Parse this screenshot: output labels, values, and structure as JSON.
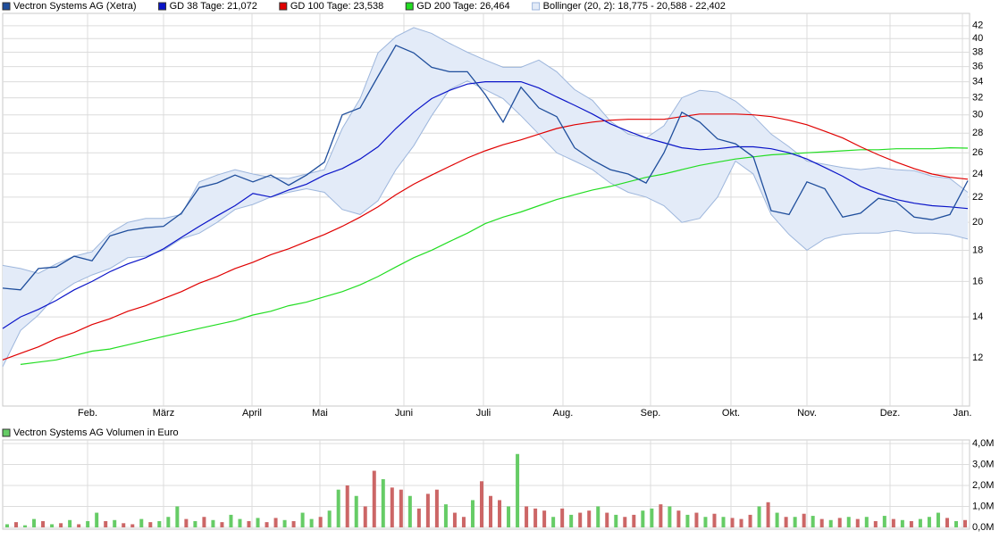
{
  "chart_data": [
    {
      "type": "line",
      "log_scale": true,
      "grid": true,
      "ylim": [
        10,
        44
      ],
      "yticks": [
        12,
        14,
        16,
        18,
        20,
        22,
        24,
        26,
        28,
        30,
        32,
        34,
        36,
        38,
        40,
        42
      ],
      "xlim": [
        0,
        54.1
      ],
      "xticks": [
        {
          "value": 4.75,
          "label": "Feb."
        },
        {
          "value": 9.0,
          "label": "März"
        },
        {
          "value": 13.95,
          "label": "April"
        },
        {
          "value": 17.75,
          "label": "Mai"
        },
        {
          "value": 22.45,
          "label": "Juni"
        },
        {
          "value": 26.9,
          "label": "Juli"
        },
        {
          "value": 31.35,
          "label": "Aug."
        },
        {
          "value": 36.25,
          "label": "Sep."
        },
        {
          "value": 40.75,
          "label": "Okt."
        },
        {
          "value": 45.0,
          "label": "Nov."
        },
        {
          "value": 49.65,
          "label": "Dez."
        },
        {
          "value": 53.7,
          "label": "Jan."
        }
      ],
      "series": [
        {
          "name": "Vectron Systems AG (Xetra)",
          "color": "#1f4e9c",
          "values": [
            15.6,
            15.5,
            16.8,
            16.9,
            17.6,
            17.3,
            19.0,
            19.4,
            19.6,
            19.7,
            20.7,
            22.8,
            23.2,
            23.9,
            23.3,
            23.9,
            23.0,
            23.9,
            25.1,
            30.0,
            30.8,
            34.7,
            39.0,
            37.9,
            35.9,
            35.3,
            35.3,
            32.4,
            29.2,
            33.3,
            30.8,
            29.8,
            26.5,
            25.3,
            24.4,
            24.0,
            23.2,
            26.0,
            30.3,
            29.2,
            27.4,
            26.9,
            25.6,
            20.9,
            20.6,
            23.3,
            22.7,
            20.4,
            20.7,
            21.9,
            21.6,
            20.4,
            20.2,
            20.6,
            23.4
          ]
        },
        {
          "name": "GD 38 Tage: 21,072",
          "color": "#0a14c8",
          "values": [
            13.4,
            14.0,
            14.4,
            14.9,
            15.5,
            16.0,
            16.6,
            17.1,
            17.5,
            18.1,
            18.9,
            19.7,
            20.5,
            21.3,
            22.3,
            22.0,
            22.6,
            23.1,
            23.9,
            24.5,
            25.4,
            26.6,
            28.5,
            30.3,
            31.9,
            32.9,
            33.7,
            34.0,
            34.0,
            34.0,
            33.2,
            32.1,
            31.1,
            30.1,
            29.0,
            28.2,
            27.5,
            27.0,
            26.5,
            26.3,
            26.4,
            26.6,
            26.6,
            26.4,
            26.0,
            25.4,
            24.6,
            23.8,
            22.9,
            22.3,
            21.8,
            21.5,
            21.3,
            21.2,
            21.07
          ]
        },
        {
          "name": "GD 100 Tage: 23,538",
          "color": "#e00000",
          "values": [
            11.9,
            12.2,
            12.5,
            12.9,
            13.2,
            13.6,
            13.9,
            14.3,
            14.6,
            15.0,
            15.4,
            15.9,
            16.3,
            16.8,
            17.2,
            17.7,
            18.1,
            18.6,
            19.1,
            19.7,
            20.4,
            21.2,
            22.2,
            23.1,
            23.9,
            24.7,
            25.5,
            26.2,
            26.8,
            27.3,
            27.9,
            28.5,
            28.9,
            29.2,
            29.4,
            29.5,
            29.5,
            29.5,
            29.8,
            30.1,
            30.1,
            30.1,
            30.0,
            29.8,
            29.4,
            28.9,
            28.2,
            27.5,
            26.6,
            25.8,
            25.1,
            24.5,
            24.0,
            23.7,
            23.54
          ]
        },
        {
          "name": "GD 200 Tage: 26,464",
          "color": "#22dd22",
          "values": [
            null,
            11.7,
            11.8,
            11.9,
            12.1,
            12.3,
            12.4,
            12.6,
            12.8,
            13.0,
            13.2,
            13.4,
            13.6,
            13.8,
            14.1,
            14.3,
            14.6,
            14.8,
            15.1,
            15.4,
            15.8,
            16.3,
            16.9,
            17.5,
            18.0,
            18.6,
            19.2,
            19.9,
            20.4,
            20.8,
            21.3,
            21.8,
            22.2,
            22.6,
            22.9,
            23.3,
            23.7,
            24.0,
            24.4,
            24.8,
            25.1,
            25.4,
            25.6,
            25.8,
            25.9,
            26.0,
            26.1,
            26.2,
            26.3,
            26.3,
            26.4,
            26.4,
            26.4,
            26.5,
            26.46
          ]
        }
      ],
      "bands": {
        "name": "Bollinger (20, 2): 18,775 - 20,588 - 22,402",
        "color": "#9db6dc",
        "fill": "#e3ebf8",
        "upper": [
          17.0,
          16.8,
          16.5,
          17.1,
          17.6,
          17.9,
          19.2,
          20.0,
          20.3,
          20.3,
          20.6,
          23.3,
          23.9,
          24.4,
          24.0,
          23.7,
          23.6,
          24.0,
          24.4,
          28.5,
          31.9,
          37.9,
          40.3,
          41.7,
          40.8,
          39.3,
          38.0,
          36.9,
          35.9,
          35.9,
          36.9,
          35.3,
          33.0,
          31.7,
          29.3,
          27.9,
          27.5,
          28.8,
          32.0,
          32.9,
          32.7,
          31.6,
          29.9,
          27.9,
          26.6,
          25.2,
          24.9,
          24.6,
          24.4,
          24.6,
          24.4,
          24.3,
          23.8,
          23.6,
          22.4
        ],
        "lower": [
          11.6,
          13.3,
          14.1,
          15.2,
          15.9,
          16.4,
          16.8,
          17.5,
          17.6,
          18.0,
          18.8,
          19.2,
          20.0,
          21.0,
          21.4,
          22.0,
          22.4,
          22.7,
          22.4,
          21.0,
          20.6,
          21.7,
          24.4,
          26.7,
          29.9,
          33.0,
          34.1,
          33.0,
          31.9,
          29.9,
          27.9,
          26.0,
          25.2,
          24.4,
          23.2,
          22.4,
          22.0,
          21.3,
          20.0,
          20.3,
          22.0,
          25.2,
          24.0,
          20.6,
          19.1,
          18.0,
          18.8,
          19.1,
          19.2,
          19.2,
          19.4,
          19.2,
          19.2,
          19.1,
          18.775
        ]
      }
    },
    {
      "type": "bar",
      "title": "Vectron Systems AG Volumen in Euro",
      "color": "#66cc66",
      "grid": true,
      "ylim": [
        0,
        4170000
      ],
      "yticks": [
        {
          "value": 0,
          "label": "0,0M"
        },
        {
          "value": 1000000,
          "label": "1,0M"
        },
        {
          "value": 2000000,
          "label": "2,0M"
        },
        {
          "value": 3000000,
          "label": "3,0M"
        },
        {
          "value": 4000000,
          "label": "4,0M"
        }
      ],
      "values": [
        150000,
        250000,
        100000,
        400000,
        300000,
        150000,
        200000,
        350000,
        150000,
        300000,
        700000,
        300000,
        350000,
        200000,
        150000,
        400000,
        250000,
        300000,
        500000,
        1000000,
        400000,
        300000,
        500000,
        350000,
        250000,
        600000,
        400000,
        300000,
        450000,
        250000,
        450000,
        350000,
        300000,
        700000,
        400000,
        500000,
        800000,
        1800000,
        2000000,
        1500000,
        1000000,
        2700000,
        2300000,
        1900000,
        1800000,
        1500000,
        900000,
        1600000,
        1800000,
        1100000,
        700000,
        500000,
        1300000,
        2200000,
        1500000,
        1300000,
        1000000,
        3500000,
        1000000,
        900000,
        800000,
        500000,
        900000,
        600000,
        700000,
        800000,
        1000000,
        700000,
        600000,
        500000,
        600000,
        800000,
        900000,
        1100000,
        1000000,
        800000,
        600000,
        700000,
        500000,
        650000,
        500000,
        450000,
        400000,
        600000,
        1000000,
        1200000,
        700000,
        500000,
        500000,
        650000,
        550000,
        400000,
        350000,
        450000,
        500000,
        400000,
        500000,
        300000,
        550000,
        400000,
        350000,
        300000,
        400000,
        500000,
        700000,
        450000,
        300000,
        350000
      ],
      "colors": [
        "#66cc66",
        "#cc6666",
        "#66cc66",
        "#66cc66",
        "#cc6666",
        "#66cc66",
        "#cc6666",
        "#66cc66",
        "#cc6666",
        "#66cc66",
        "#66cc66",
        "#cc6666",
        "#66cc66",
        "#cc6666",
        "#cc6666",
        "#66cc66",
        "#cc6666",
        "#66cc66",
        "#66cc66",
        "#66cc66",
        "#cc6666",
        "#66cc66",
        "#cc6666",
        "#66cc66",
        "#cc6666",
        "#66cc66",
        "#66cc66",
        "#cc6666",
        "#66cc66",
        "#cc6666",
        "#cc6666",
        "#66cc66",
        "#cc6666",
        "#66cc66",
        "#66cc66",
        "#cc6666",
        "#66cc66",
        "#66cc66",
        "#cc6666",
        "#66cc66",
        "#cc6666",
        "#cc6666",
        "#66cc66",
        "#cc6666",
        "#cc6666",
        "#66cc66",
        "#cc6666",
        "#cc6666",
        "#cc6666",
        "#66cc66",
        "#cc6666",
        "#cc6666",
        "#66cc66",
        "#cc6666",
        "#cc6666",
        "#cc6666",
        "#66cc66",
        "#66cc66",
        "#cc6666",
        "#cc6666",
        "#cc6666",
        "#66cc66",
        "#cc6666",
        "#66cc66",
        "#cc6666",
        "#cc6666",
        "#66cc66",
        "#cc6666",
        "#66cc66",
        "#cc6666",
        "#cc6666",
        "#66cc66",
        "#66cc66",
        "#cc6666",
        "#66cc66",
        "#cc6666",
        "#66cc66",
        "#cc6666",
        "#66cc66",
        "#cc6666",
        "#66cc66",
        "#cc6666",
        "#cc6666",
        "#cc6666",
        "#66cc66",
        "#cc6666",
        "#66cc66",
        "#cc6666",
        "#66cc66",
        "#cc6666",
        "#66cc66",
        "#cc6666",
        "#66cc66",
        "#cc6666",
        "#66cc66",
        "#cc6666",
        "#66cc66",
        "#cc6666",
        "#66cc66",
        "#cc6666",
        "#66cc66",
        "#cc6666",
        "#66cc66",
        "#66cc66",
        "#66cc66",
        "#cc6666",
        "#66cc66",
        "#cc6666"
      ]
    }
  ]
}
